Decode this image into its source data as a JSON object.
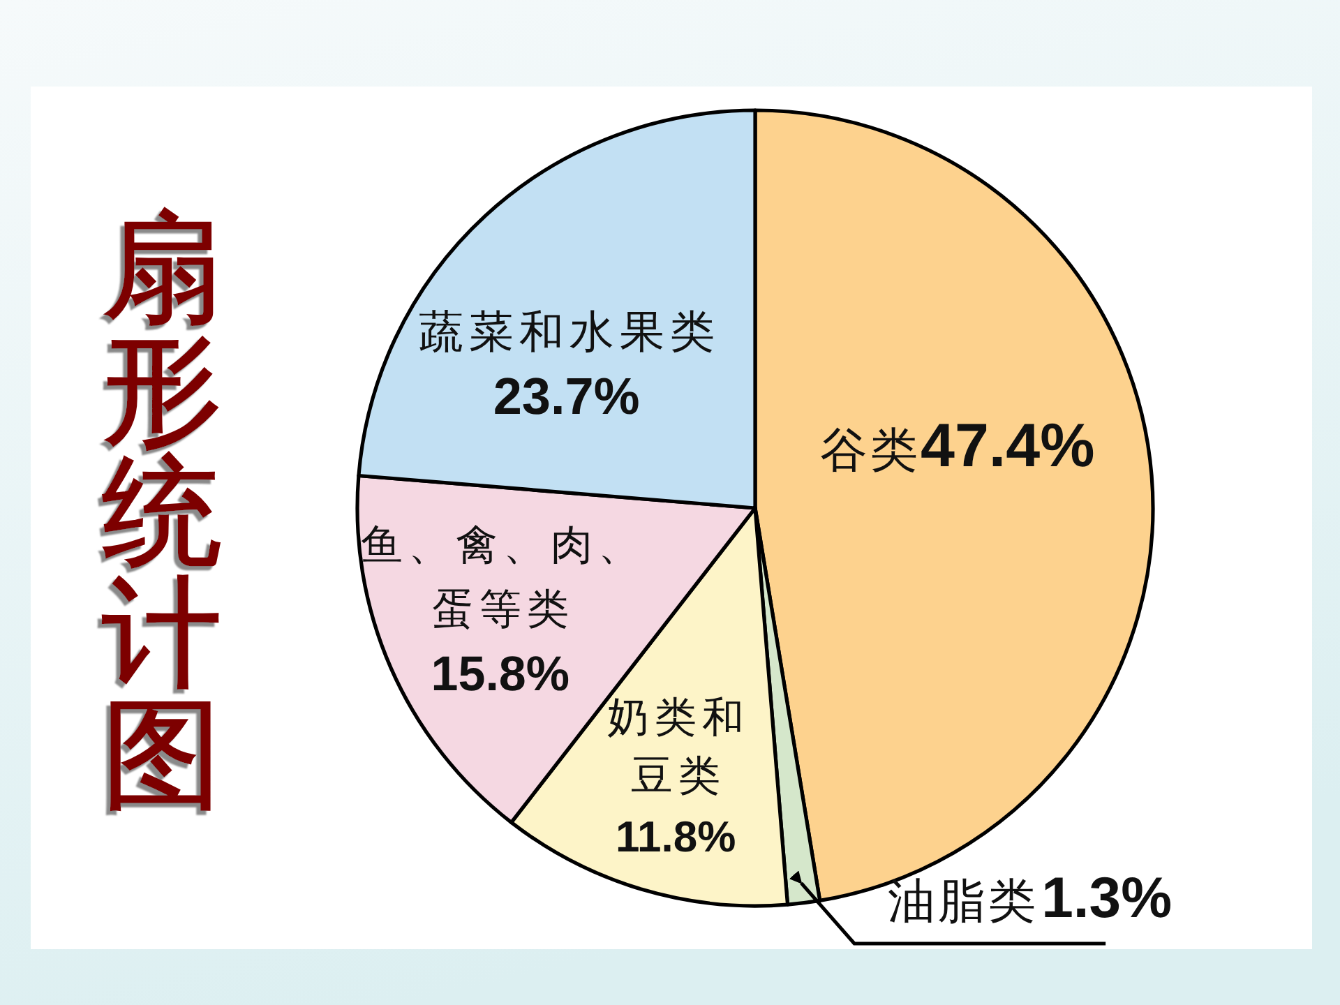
{
  "chart_data": {
    "type": "pie",
    "title": "扇形统计图",
    "categories": [
      "谷类",
      "油脂类",
      "奶类和豆类",
      "鱼、禽、肉、蛋等类",
      "蔬菜和水果类"
    ],
    "values": [
      47.4,
      1.3,
      11.8,
      15.8,
      23.7
    ],
    "colors": [
      "#fdd28e",
      "#d5e7cb",
      "#fdf4c8",
      "#f5d8e2",
      "#c2e0f3"
    ],
    "value_labels": [
      "47.4%",
      "1.3%",
      "11.8%",
      "15.8%",
      "23.7%"
    ]
  }
}
